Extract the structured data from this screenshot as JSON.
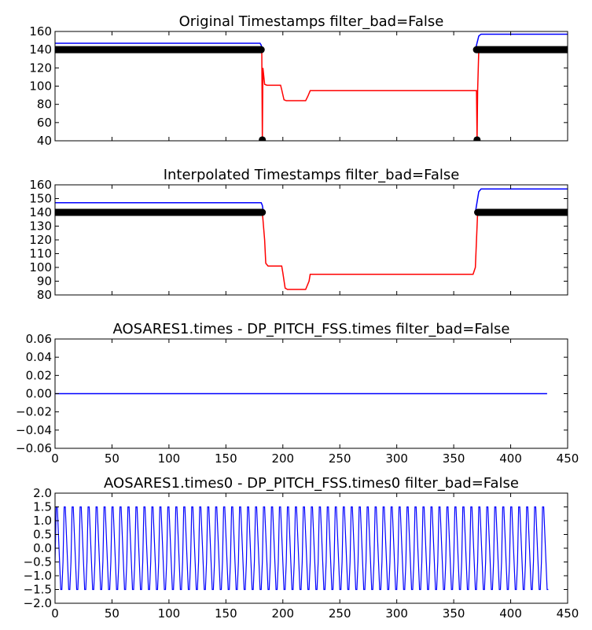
{
  "chart_data": [
    {
      "type": "line",
      "title": "Original Timestamps filter_bad=False",
      "xlim": [
        0,
        450
      ],
      "ylim": [
        40,
        160
      ],
      "yticks": [
        40,
        60,
        80,
        100,
        120,
        140,
        160
      ],
      "show_xtick_labels": false,
      "series": [
        {
          "color": "#0000ff",
          "points": [
            [
              0,
              147
            ],
            [
              180,
              147
            ],
            [
              181,
              145
            ],
            [
              182,
              140
            ]
          ],
          "points2": [
            [
              369,
              140
            ],
            [
              372,
              155
            ],
            [
              374,
              157
            ],
            [
              450,
              157
            ]
          ]
        },
        {
          "color": "#ff0000",
          "points": [
            [
              180,
              140
            ],
            [
              181.5,
              140
            ],
            [
              182,
              41
            ],
            [
              182.5,
              120
            ],
            [
              184,
              102
            ],
            [
              186,
              101
            ],
            [
              198,
              101
            ],
            [
              199,
              96
            ],
            [
              201,
              85
            ],
            [
              203,
              84
            ],
            [
              220,
              84
            ],
            [
              222,
              89
            ],
            [
              224,
              95
            ],
            [
              370,
              95
            ],
            [
              370.5,
              41
            ],
            [
              371,
              95
            ],
            [
              372,
              140
            ]
          ]
        },
        {
          "color": "#000000",
          "style": "thick",
          "segments": [
            [
              0,
              181,
              140
            ],
            [
              370,
              450,
              140
            ]
          ],
          "points": [
            [
              182,
              41
            ],
            [
              370.5,
              41
            ]
          ]
        }
      ]
    },
    {
      "type": "line",
      "title": "Interpolated Timestamps filter_bad=False",
      "xlim": [
        0,
        450
      ],
      "ylim": [
        80,
        160
      ],
      "yticks": [
        80,
        90,
        100,
        110,
        120,
        130,
        140,
        150,
        160
      ],
      "show_xtick_labels": false,
      "series": [
        {
          "color": "#0000ff",
          "points": [
            [
              0,
              147
            ],
            [
              181,
              147
            ],
            [
              182,
              145
            ],
            [
              183,
              140
            ]
          ],
          "points2": [
            [
              369,
              140
            ],
            [
              372,
              155
            ],
            [
              374,
              157
            ],
            [
              450,
              157
            ]
          ]
        },
        {
          "color": "#ff0000",
          "points": [
            [
              182,
              140
            ],
            [
              184,
              120
            ],
            [
              185,
              103
            ],
            [
              187,
              101
            ],
            [
              199,
              101
            ],
            [
              200,
              96
            ],
            [
              202,
              85
            ],
            [
              204,
              84
            ],
            [
              220,
              84
            ],
            [
              223,
              90
            ],
            [
              224,
              95
            ],
            [
              367,
              95
            ],
            [
              369,
              100
            ],
            [
              370,
              120
            ],
            [
              371,
              140
            ]
          ]
        },
        {
          "color": "#000000",
          "style": "thick",
          "segments": [
            [
              0,
              182,
              140
            ],
            [
              371,
              450,
              140
            ]
          ],
          "points": []
        }
      ]
    },
    {
      "type": "line",
      "title": "AOSARES1.times - DP_PITCH_FSS.times filter_bad=False",
      "xlim": [
        0,
        450
      ],
      "ylim": [
        -0.06,
        0.06
      ],
      "yticks": [
        -0.06,
        -0.04,
        -0.02,
        0.0,
        0.02,
        0.04,
        0.06
      ],
      "ytick_labels": [
        "−0.06",
        "−0.04",
        "−0.02",
        "0.00",
        "0.02",
        "0.04",
        "0.06"
      ],
      "xticks": [
        0,
        50,
        100,
        150,
        200,
        250,
        300,
        350,
        400,
        450
      ],
      "show_xtick_labels": true,
      "series": [
        {
          "color": "#0000ff",
          "points": [
            [
              0,
              0
            ],
            [
              432,
              0
            ]
          ]
        }
      ]
    },
    {
      "type": "line",
      "title": "AOSARES1.times0 - DP_PITCH_FSS.times0 filter_bad=False",
      "xlim": [
        0,
        450
      ],
      "ylim": [
        -2.0,
        2.0
      ],
      "yticks": [
        -2.0,
        -1.5,
        -1.0,
        -0.5,
        0.0,
        0.5,
        1.0,
        1.5,
        2.0
      ],
      "ytick_labels": [
        "−2.0",
        "−1.5",
        "−1.0",
        "−0.5",
        "0.0",
        "0.5",
        "1.0",
        "1.5",
        "2.0"
      ],
      "xticks": [
        0,
        50,
        100,
        150,
        200,
        250,
        300,
        350,
        400,
        450
      ],
      "show_xtick_labels": true,
      "series": [
        {
          "color": "#0000ff",
          "pattern": [
            -0.5,
            1.5,
            1.5,
            0.5,
            -0.5,
            -1.5,
            -1.5
          ],
          "x_start": 0,
          "x_end": 433,
          "step": 1.0
        }
      ]
    }
  ]
}
